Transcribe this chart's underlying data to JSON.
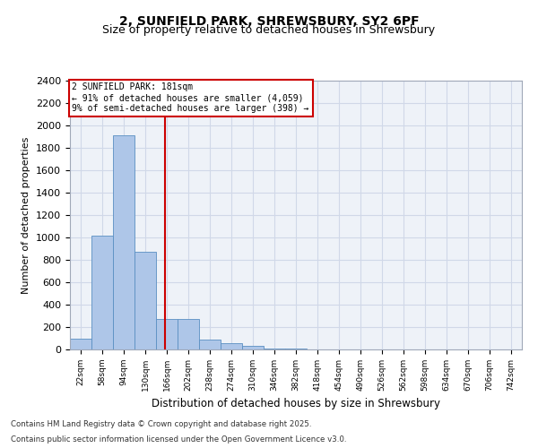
{
  "title_line1": "2, SUNFIELD PARK, SHREWSBURY, SY2 6PF",
  "title_line2": "Size of property relative to detached houses in Shrewsbury",
  "xlabel": "Distribution of detached houses by size in Shrewsbury",
  "ylabel": "Number of detached properties",
  "bins": [
    "22sqm",
    "58sqm",
    "94sqm",
    "130sqm",
    "166sqm",
    "202sqm",
    "238sqm",
    "274sqm",
    "310sqm",
    "346sqm",
    "382sqm",
    "418sqm",
    "454sqm",
    "490sqm",
    "526sqm",
    "562sqm",
    "598sqm",
    "634sqm",
    "670sqm",
    "706sqm",
    "742sqm"
  ],
  "bar_values": [
    100,
    1020,
    1910,
    870,
    270,
    270,
    90,
    60,
    30,
    10,
    5,
    2,
    0,
    0,
    0,
    0,
    0,
    0,
    0,
    0,
    0
  ],
  "bar_color": "#aec6e8",
  "bar_edge_color": "#5a8fc2",
  "grid_color": "#d0d8e8",
  "background_color": "#eef2f8",
  "vline_color": "#cc0000",
  "annotation_title": "2 SUNFIELD PARK: 181sqm",
  "annotation_line2": "← 91% of detached houses are smaller (4,059)",
  "annotation_line3": "9% of semi-detached houses are larger (398) →",
  "annotation_box_edgecolor": "#cc0000",
  "footer_line1": "Contains HM Land Registry data © Crown copyright and database right 2025.",
  "footer_line2": "Contains public sector information licensed under the Open Government Licence v3.0.",
  "ylim": [
    0,
    2400
  ],
  "yticks": [
    0,
    200,
    400,
    600,
    800,
    1000,
    1200,
    1400,
    1600,
    1800,
    2000,
    2200,
    2400
  ]
}
